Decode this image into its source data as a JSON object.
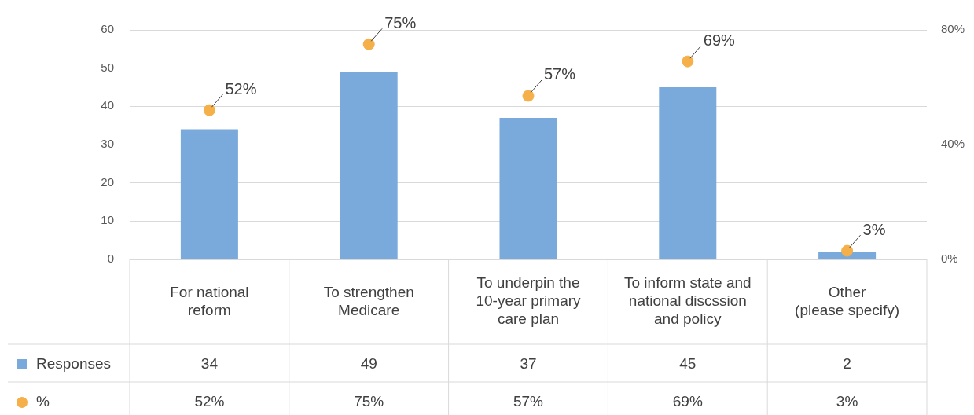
{
  "chart_data": {
    "type": "bar",
    "categories": [
      "For national\nreform",
      "To strengthen\nMedicare",
      "To underpin the\n10-year primary\ncare plan",
      "To inform state and\nnational discssion\nand policy",
      "Other\n(please specify)"
    ],
    "series": [
      {
        "name": "Responses",
        "color": "#7aaadc",
        "values": [
          34,
          49,
          37,
          45,
          2
        ]
      },
      {
        "name": "%",
        "type": "scatter",
        "axis": "y2",
        "color": "#f5b04a",
        "marker": "circle",
        "values": [
          52,
          75,
          57,
          69,
          3
        ],
        "value_labels": [
          "52%",
          "75%",
          "57%",
          "69%",
          "3%"
        ]
      }
    ],
    "ylim": [
      0,
      60
    ],
    "yticks": [
      0,
      10,
      20,
      30,
      40,
      50,
      60
    ],
    "y2lim": [
      0,
      80
    ],
    "y2ticks": [
      {
        "value": 0,
        "label": "0%"
      },
      {
        "value": 40,
        "label": "40%"
      },
      {
        "value": 80,
        "label": "80%"
      }
    ],
    "grid": "y",
    "legend": "bottom left",
    "data_labels": true
  }
}
